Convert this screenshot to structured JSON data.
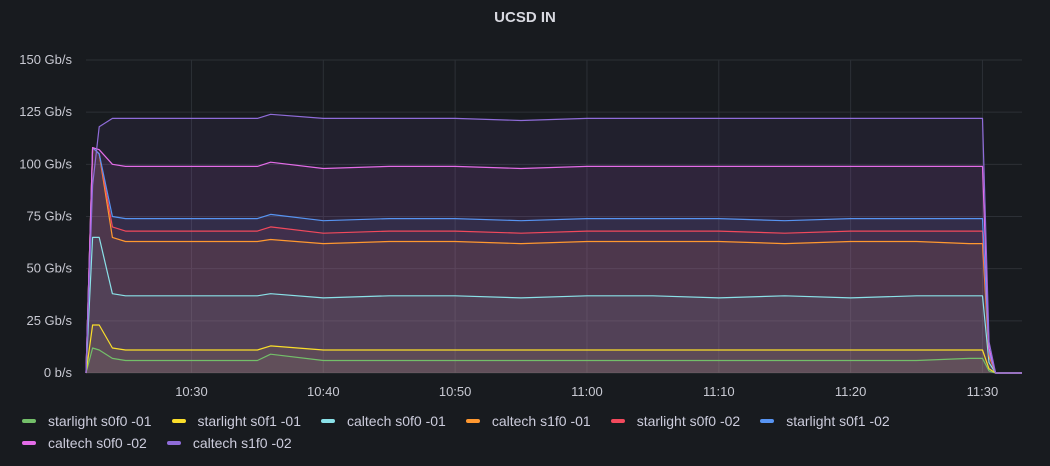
{
  "chart_data": {
    "type": "line",
    "title": "UCSD IN",
    "y_ticks": [
      "0 b/s",
      "25 Gb/s",
      "50 Gb/s",
      "75 Gb/s",
      "100 Gb/s",
      "125 Gb/s",
      "150 Gb/s"
    ],
    "ylim": [
      0,
      150
    ],
    "y_unit": "Gb/s",
    "x_ticks": [
      "10:30",
      "10:40",
      "10:50",
      "11:00",
      "11:10",
      "11:20",
      "11:30"
    ],
    "x_range": [
      "10:22",
      "11:33"
    ],
    "stacked": false,
    "fill_area": true,
    "grid": true,
    "legend_position": "bottom",
    "series": [
      {
        "name": "starlight s0f0 -01",
        "color": "#73bf69",
        "x": [
          "10:22",
          "10:22:30",
          "10:23",
          "10:24",
          "10:25",
          "10:27",
          "10:30",
          "10:35",
          "10:36",
          "10:40",
          "10:45",
          "10:50",
          "10:55",
          "11:00",
          "11:05",
          "11:10",
          "11:15",
          "11:20",
          "11:25",
          "11:29",
          "11:30",
          "11:30:30",
          "11:31",
          "11:33"
        ],
        "values": [
          0,
          12,
          11,
          7,
          6,
          6,
          6,
          6,
          9,
          6,
          6,
          6,
          6,
          6,
          6,
          6,
          6,
          6,
          6,
          7,
          7,
          1,
          0,
          0
        ]
      },
      {
        "name": "starlight s0f1 -01",
        "color": "#fade2a",
        "x": [
          "10:22",
          "10:22:30",
          "10:23",
          "10:24",
          "10:25",
          "10:27",
          "10:30",
          "10:35",
          "10:36",
          "10:40",
          "10:45",
          "10:50",
          "10:55",
          "11:00",
          "11:05",
          "11:10",
          "11:15",
          "11:20",
          "11:25",
          "11:29",
          "11:30",
          "11:30:30",
          "11:31",
          "11:33"
        ],
        "values": [
          0,
          23,
          23,
          12,
          11,
          11,
          11,
          11,
          13,
          11,
          11,
          11,
          11,
          11,
          11,
          11,
          11,
          11,
          11,
          11,
          11,
          2,
          0,
          0
        ]
      },
      {
        "name": "caltech s0f0 -01",
        "color": "#8ae1e8",
        "x": [
          "10:22",
          "10:22:30",
          "10:23",
          "10:24",
          "10:25",
          "10:27",
          "10:30",
          "10:35",
          "10:36",
          "10:40",
          "10:45",
          "10:50",
          "10:55",
          "11:00",
          "11:05",
          "11:10",
          "11:15",
          "11:20",
          "11:25",
          "11:29",
          "11:30",
          "11:30:30",
          "11:31",
          "11:33"
        ],
        "values": [
          0,
          65,
          65,
          38,
          37,
          37,
          37,
          37,
          38,
          36,
          37,
          37,
          36,
          37,
          37,
          36,
          37,
          36,
          37,
          37,
          37,
          5,
          0,
          0
        ]
      },
      {
        "name": "caltech s1f0 -01",
        "color": "#ff9830",
        "x": [
          "10:22",
          "10:22:30",
          "10:23",
          "10:24",
          "10:25",
          "10:27",
          "10:30",
          "10:35",
          "10:36",
          "10:40",
          "10:45",
          "10:50",
          "10:55",
          "11:00",
          "11:05",
          "11:10",
          "11:15",
          "11:20",
          "11:25",
          "11:29",
          "11:30",
          "11:30:30",
          "11:31",
          "11:33"
        ],
        "values": [
          0,
          108,
          105,
          65,
          63,
          63,
          63,
          63,
          64,
          62,
          63,
          63,
          62,
          63,
          63,
          63,
          62,
          63,
          63,
          62,
          62,
          8,
          0,
          0
        ]
      },
      {
        "name": "starlight s0f0 -02",
        "color": "#f2495c",
        "x": [
          "10:22",
          "10:22:30",
          "10:23",
          "10:24",
          "10:25",
          "10:27",
          "10:30",
          "10:35",
          "10:36",
          "10:40",
          "10:45",
          "10:50",
          "10:55",
          "11:00",
          "11:05",
          "11:10",
          "11:15",
          "11:20",
          "11:25",
          "11:29",
          "11:30",
          "11:30:30",
          "11:31",
          "11:33"
        ],
        "values": [
          0,
          108,
          105,
          70,
          68,
          68,
          68,
          68,
          70,
          67,
          68,
          68,
          67,
          68,
          68,
          68,
          67,
          68,
          68,
          68,
          68,
          9,
          0,
          0
        ]
      },
      {
        "name": "starlight s0f1 -02",
        "color": "#5794f2",
        "x": [
          "10:22",
          "10:22:30",
          "10:23",
          "10:24",
          "10:25",
          "10:27",
          "10:30",
          "10:35",
          "10:36",
          "10:40",
          "10:45",
          "10:50",
          "10:55",
          "11:00",
          "11:05",
          "11:10",
          "11:15",
          "11:20",
          "11:25",
          "11:29",
          "11:30",
          "11:30:30",
          "11:31",
          "11:33"
        ],
        "values": [
          0,
          108,
          105,
          75,
          74,
          74,
          74,
          74,
          76,
          73,
          74,
          74,
          73,
          74,
          74,
          74,
          73,
          74,
          74,
          74,
          74,
          10,
          0,
          0
        ]
      },
      {
        "name": "caltech s0f0 -02",
        "color": "#e46ce8",
        "x": [
          "10:22",
          "10:22:30",
          "10:23",
          "10:24",
          "10:25",
          "10:27",
          "10:30",
          "10:35",
          "10:36",
          "10:40",
          "10:45",
          "10:50",
          "10:55",
          "11:00",
          "11:05",
          "11:10",
          "11:15",
          "11:20",
          "11:25",
          "11:29",
          "11:30",
          "11:30:30",
          "11:31",
          "11:33"
        ],
        "values": [
          0,
          108,
          107,
          100,
          99,
          99,
          99,
          99,
          101,
          98,
          99,
          99,
          98,
          99,
          99,
          99,
          99,
          99,
          99,
          99,
          99,
          12,
          0,
          0
        ]
      },
      {
        "name": "caltech s1f0 -02",
        "color": "#8f6cd9",
        "x": [
          "10:22",
          "10:22:30",
          "10:23",
          "10:24",
          "10:25",
          "10:27",
          "10:30",
          "10:35",
          "10:36",
          "10:40",
          "10:45",
          "10:50",
          "10:55",
          "11:00",
          "11:05",
          "11:10",
          "11:15",
          "11:20",
          "11:25",
          "11:29",
          "11:30",
          "11:30:30",
          "11:31",
          "11:33"
        ],
        "values": [
          0,
          90,
          118,
          122,
          122,
          122,
          122,
          122,
          124,
          122,
          122,
          122,
          121,
          122,
          122,
          122,
          122,
          122,
          122,
          122,
          122,
          15,
          0,
          0
        ]
      }
    ]
  }
}
